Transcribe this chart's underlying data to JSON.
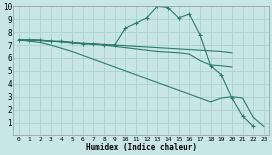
{
  "background_color": "#c8e6e6",
  "grid_color": "#b0d4d4",
  "line_color": "#2d7a6a",
  "xlabel": "Humidex (Indice chaleur)",
  "xlim": [
    -0.5,
    23.5
  ],
  "ylim": [
    0,
    10
  ],
  "xticks": [
    0,
    1,
    2,
    3,
    4,
    5,
    6,
    7,
    8,
    9,
    10,
    11,
    12,
    13,
    14,
    15,
    16,
    17,
    18,
    19,
    20,
    21,
    22,
    23
  ],
  "yticks": [
    1,
    2,
    3,
    4,
    5,
    6,
    7,
    8,
    9,
    10
  ],
  "series": [
    {
      "x": [
        0,
        1,
        2,
        3,
        4,
        5,
        6,
        7,
        8,
        9,
        10,
        11,
        12,
        13,
        14,
        15,
        16,
        17,
        18,
        19,
        20,
        21,
        22
      ],
      "y": [
        7.4,
        7.4,
        7.4,
        7.3,
        7.3,
        7.2,
        7.1,
        7.1,
        7.0,
        7.0,
        8.3,
        8.7,
        9.1,
        10.0,
        9.9,
        9.1,
        9.4,
        7.8,
        5.4,
        4.7,
        2.9,
        1.5,
        0.7
      ],
      "marker": true
    },
    {
      "x": [
        0,
        1,
        2,
        3,
        4,
        5,
        6,
        7,
        8,
        9,
        10,
        11,
        12,
        13,
        14,
        15,
        16,
        17,
        18,
        19,
        20
      ],
      "y": [
        7.4,
        7.4,
        7.35,
        7.3,
        7.25,
        7.2,
        7.15,
        7.1,
        7.05,
        7.0,
        6.95,
        6.9,
        6.85,
        6.8,
        6.75,
        6.7,
        6.65,
        6.6,
        6.55,
        6.5,
        6.4
      ],
      "marker": false
    },
    {
      "x": [
        0,
        1,
        2,
        3,
        4,
        5,
        6,
        7,
        8,
        9,
        10,
        11,
        12,
        13,
        14,
        15,
        16,
        17,
        18,
        19,
        20
      ],
      "y": [
        7.4,
        7.4,
        7.35,
        7.3,
        7.25,
        7.15,
        7.1,
        7.05,
        7.0,
        6.9,
        6.8,
        6.7,
        6.6,
        6.5,
        6.45,
        6.4,
        6.3,
        5.8,
        5.45,
        5.4,
        5.3
      ],
      "marker": false
    },
    {
      "x": [
        0,
        1,
        2,
        3,
        4,
        5,
        6,
        7,
        8,
        9,
        10,
        11,
        12,
        13,
        14,
        15,
        16,
        17,
        18,
        19,
        20,
        21,
        22,
        23
      ],
      "y": [
        7.4,
        7.3,
        7.2,
        7.0,
        6.75,
        6.5,
        6.2,
        5.9,
        5.6,
        5.3,
        5.0,
        4.7,
        4.4,
        4.1,
        3.8,
        3.5,
        3.2,
        2.9,
        2.6,
        2.9,
        3.0,
        2.9,
        1.4,
        0.7
      ],
      "marker": false
    }
  ]
}
